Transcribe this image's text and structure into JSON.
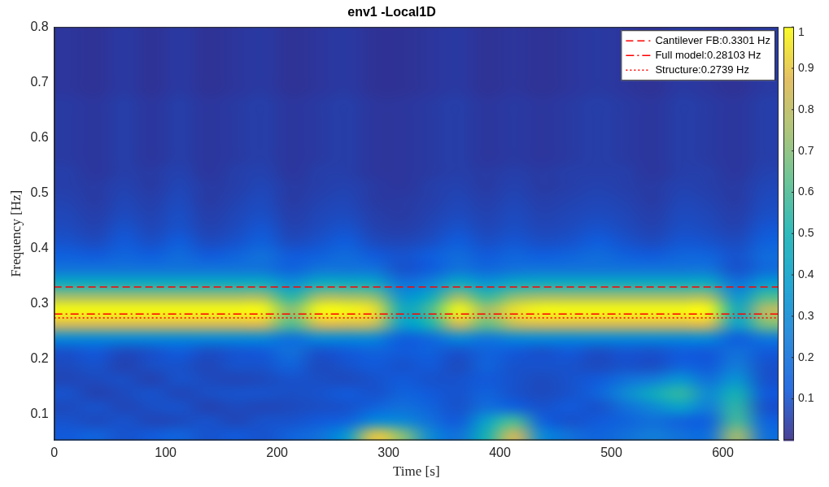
{
  "chart_data": {
    "type": "heatmap",
    "title": "env1 -Local1D",
    "xlabel": "Time [s]",
    "ylabel": "Frequency [Hz]",
    "xlim": [
      0,
      650
    ],
    "xticks": [
      0,
      100,
      200,
      300,
      400,
      500,
      600
    ],
    "ylim": [
      0.053,
      0.8
    ],
    "yticks": [
      0.1,
      0.2,
      0.3,
      0.4,
      0.5,
      0.6,
      0.7,
      0.8
    ],
    "grid": false,
    "legend": "upper right",
    "x_edges": [
      0,
      25,
      50,
      75,
      100,
      125,
      150,
      175,
      200,
      225,
      250,
      275,
      300,
      325,
      350,
      375,
      400,
      425,
      450,
      475,
      500,
      525,
      550,
      575,
      600,
      625,
      650
    ],
    "y_edges": [
      0.05,
      0.075,
      0.1,
      0.125,
      0.15,
      0.175,
      0.2,
      0.225,
      0.25,
      0.275,
      0.3,
      0.325,
      0.35,
      0.375,
      0.4,
      0.425,
      0.45,
      0.475,
      0.5,
      0.525,
      0.55,
      0.575,
      0.6,
      0.625,
      0.65,
      0.675,
      0.7,
      0.725,
      0.75,
      0.775,
      0.8
    ],
    "cells": [
      [
        0.12,
        0.15,
        0.1,
        0.12,
        0.15,
        0.1,
        0.12,
        0.1,
        0.15,
        0.2,
        0.35,
        0.9,
        0.7,
        0.3,
        0.2,
        0.5,
        0.85,
        0.3,
        0.2,
        0.15,
        0.2,
        0.25,
        0.2,
        0.2,
        0.75,
        0.2
      ],
      [
        0.1,
        0.08,
        0.1,
        0.07,
        0.08,
        0.1,
        0.07,
        0.1,
        0.1,
        0.12,
        0.15,
        0.3,
        0.3,
        0.2,
        0.12,
        0.4,
        0.6,
        0.15,
        0.1,
        0.12,
        0.15,
        0.2,
        0.15,
        0.15,
        0.6,
        0.15
      ],
      [
        0.08,
        0.1,
        0.07,
        0.09,
        0.1,
        0.06,
        0.08,
        0.07,
        0.08,
        0.09,
        0.1,
        0.15,
        0.2,
        0.15,
        0.1,
        0.2,
        0.15,
        0.1,
        0.12,
        0.1,
        0.2,
        0.3,
        0.4,
        0.25,
        0.55,
        0.1
      ],
      [
        0.1,
        0.06,
        0.08,
        0.1,
        0.07,
        0.09,
        0.1,
        0.1,
        0.09,
        0.1,
        0.12,
        0.1,
        0.15,
        0.12,
        0.1,
        0.15,
        0.1,
        0.08,
        0.1,
        0.15,
        0.3,
        0.45,
        0.55,
        0.3,
        0.5,
        0.12
      ],
      [
        0.07,
        0.08,
        0.09,
        0.06,
        0.1,
        0.08,
        0.07,
        0.08,
        0.1,
        0.09,
        0.08,
        0.1,
        0.12,
        0.1,
        0.1,
        0.12,
        0.1,
        0.08,
        0.1,
        0.12,
        0.2,
        0.25,
        0.35,
        0.2,
        0.35,
        0.1
      ],
      [
        0.08,
        0.1,
        0.06,
        0.09,
        0.1,
        0.07,
        0.1,
        0.1,
        0.15,
        0.08,
        0.1,
        0.12,
        0.1,
        0.12,
        0.08,
        0.15,
        0.1,
        0.1,
        0.1,
        0.08,
        0.1,
        0.09,
        0.15,
        0.12,
        0.25,
        0.1
      ],
      [
        0.1,
        0.12,
        0.08,
        0.1,
        0.13,
        0.09,
        0.11,
        0.12,
        0.2,
        0.1,
        0.12,
        0.15,
        0.12,
        0.14,
        0.1,
        0.15,
        0.12,
        0.1,
        0.12,
        0.09,
        0.11,
        0.1,
        0.13,
        0.12,
        0.2,
        0.12
      ],
      [
        0.3,
        0.3,
        0.3,
        0.3,
        0.3,
        0.3,
        0.3,
        0.3,
        0.21,
        0.3,
        0.3,
        0.29,
        0.14,
        0.18,
        0.3,
        0.23,
        0.29,
        0.3,
        0.3,
        0.3,
        0.3,
        0.3,
        0.3,
        0.3,
        0.14,
        0.24
      ],
      [
        0.85,
        0.85,
        0.85,
        0.85,
        0.85,
        0.85,
        0.85,
        0.85,
        0.6,
        0.85,
        0.85,
        0.81,
        0.38,
        0.51,
        0.85,
        0.64,
        0.81,
        0.85,
        0.85,
        0.85,
        0.85,
        0.85,
        0.85,
        0.85,
        0.38,
        0.68
      ],
      [
        1,
        1,
        1,
        1,
        1,
        1,
        1,
        1,
        0.7,
        1,
        1,
        0.95,
        0.45,
        0.6,
        1,
        0.75,
        0.95,
        1,
        1,
        1,
        1,
        1,
        1,
        1,
        0.45,
        0.8
      ],
      [
        0.75,
        0.75,
        0.75,
        0.75,
        0.75,
        0.75,
        0.75,
        0.75,
        0.53,
        0.75,
        0.75,
        0.71,
        0.34,
        0.45,
        0.75,
        0.56,
        0.71,
        0.75,
        0.75,
        0.75,
        0.75,
        0.75,
        0.75,
        0.75,
        0.34,
        0.6
      ],
      [
        0.45,
        0.45,
        0.45,
        0.45,
        0.45,
        0.45,
        0.45,
        0.45,
        0.32,
        0.45,
        0.45,
        0.43,
        0.2,
        0.27,
        0.45,
        0.34,
        0.43,
        0.45,
        0.45,
        0.45,
        0.45,
        0.45,
        0.45,
        0.45,
        0.2,
        0.36
      ],
      [
        0.22,
        0.22,
        0.22,
        0.22,
        0.22,
        0.22,
        0.22,
        0.22,
        0.15,
        0.22,
        0.22,
        0.21,
        0.1,
        0.13,
        0.22,
        0.17,
        0.21,
        0.22,
        0.22,
        0.22,
        0.22,
        0.22,
        0.22,
        0.22,
        0.1,
        0.18
      ],
      [
        0.14,
        0.12,
        0.16,
        0.13,
        0.18,
        0.12,
        0.15,
        0.2,
        0.12,
        0.14,
        0.18,
        0.12,
        0.1,
        0.13,
        0.18,
        0.12,
        0.16,
        0.13,
        0.15,
        0.18,
        0.14,
        0.12,
        0.16,
        0.15,
        0.1,
        0.18
      ],
      [
        0.1,
        0.08,
        0.12,
        0.09,
        0.13,
        0.08,
        0.1,
        0.14,
        0.08,
        0.1,
        0.13,
        0.08,
        0.07,
        0.09,
        0.13,
        0.09,
        0.11,
        0.09,
        0.1,
        0.13,
        0.1,
        0.08,
        0.11,
        0.1,
        0.08,
        0.14
      ],
      [
        0.08,
        0.06,
        0.1,
        0.07,
        0.1,
        0.06,
        0.08,
        0.11,
        0.06,
        0.08,
        0.1,
        0.06,
        0.05,
        0.07,
        0.1,
        0.07,
        0.09,
        0.07,
        0.08,
        0.1,
        0.08,
        0.06,
        0.09,
        0.08,
        0.06,
        0.11
      ],
      [
        0.07,
        0.05,
        0.08,
        0.06,
        0.09,
        0.05,
        0.07,
        0.09,
        0.05,
        0.07,
        0.08,
        0.05,
        0.04,
        0.06,
        0.08,
        0.06,
        0.08,
        0.06,
        0.07,
        0.08,
        0.07,
        0.05,
        0.08,
        0.07,
        0.05,
        0.09
      ],
      [
        0.06,
        0.04,
        0.07,
        0.05,
        0.08,
        0.04,
        0.06,
        0.08,
        0.04,
        0.06,
        0.07,
        0.04,
        0.04,
        0.05,
        0.07,
        0.05,
        0.07,
        0.05,
        0.06,
        0.07,
        0.06,
        0.04,
        0.07,
        0.06,
        0.04,
        0.08
      ],
      [
        0.05,
        0.04,
        0.06,
        0.04,
        0.07,
        0.04,
        0.05,
        0.07,
        0.04,
        0.05,
        0.06,
        0.04,
        0.03,
        0.05,
        0.06,
        0.04,
        0.06,
        0.04,
        0.05,
        0.06,
        0.05,
        0.04,
        0.06,
        0.05,
        0.04,
        0.07
      ],
      [
        0.05,
        0.03,
        0.05,
        0.04,
        0.06,
        0.03,
        0.05,
        0.06,
        0.03,
        0.05,
        0.05,
        0.03,
        0.03,
        0.04,
        0.05,
        0.04,
        0.05,
        0.04,
        0.05,
        0.05,
        0.05,
        0.03,
        0.05,
        0.05,
        0.03,
        0.06
      ],
      [
        0.04,
        0.03,
        0.05,
        0.03,
        0.05,
        0.03,
        0.04,
        0.05,
        0.03,
        0.04,
        0.05,
        0.03,
        0.03,
        0.04,
        0.05,
        0.03,
        0.04,
        0.03,
        0.04,
        0.05,
        0.04,
        0.03,
        0.05,
        0.04,
        0.03,
        0.05
      ],
      [
        0.04,
        0.03,
        0.05,
        0.03,
        0.05,
        0.03,
        0.04,
        0.05,
        0.03,
        0.04,
        0.05,
        0.03,
        0.03,
        0.04,
        0.05,
        0.03,
        0.04,
        0.03,
        0.04,
        0.05,
        0.04,
        0.03,
        0.05,
        0.04,
        0.03,
        0.05
      ],
      [
        0.04,
        0.03,
        0.05,
        0.03,
        0.05,
        0.03,
        0.04,
        0.05,
        0.03,
        0.04,
        0.05,
        0.03,
        0.03,
        0.04,
        0.05,
        0.03,
        0.04,
        0.03,
        0.04,
        0.05,
        0.04,
        0.03,
        0.05,
        0.04,
        0.03,
        0.05
      ],
      [
        0.04,
        0.03,
        0.05,
        0.03,
        0.05,
        0.03,
        0.04,
        0.05,
        0.03,
        0.04,
        0.05,
        0.03,
        0.03,
        0.04,
        0.05,
        0.03,
        0.04,
        0.03,
        0.04,
        0.05,
        0.04,
        0.03,
        0.05,
        0.04,
        0.03,
        0.05
      ],
      [
        0.04,
        0.03,
        0.05,
        0.03,
        0.05,
        0.03,
        0.04,
        0.05,
        0.03,
        0.04,
        0.05,
        0.03,
        0.03,
        0.04,
        0.05,
        0.03,
        0.04,
        0.03,
        0.04,
        0.05,
        0.04,
        0.03,
        0.05,
        0.04,
        0.03,
        0.05
      ],
      [
        0.03,
        0.02,
        0.04,
        0.02,
        0.04,
        0.02,
        0.03,
        0.04,
        0.02,
        0.03,
        0.04,
        0.02,
        0.02,
        0.03,
        0.04,
        0.02,
        0.03,
        0.02,
        0.03,
        0.04,
        0.03,
        0.02,
        0.04,
        0.03,
        0.02,
        0.04
      ],
      [
        0.03,
        0.02,
        0.04,
        0.02,
        0.04,
        0.02,
        0.03,
        0.04,
        0.02,
        0.03,
        0.04,
        0.02,
        0.02,
        0.03,
        0.04,
        0.02,
        0.03,
        0.02,
        0.03,
        0.04,
        0.03,
        0.02,
        0.04,
        0.03,
        0.02,
        0.04
      ],
      [
        0.03,
        0.02,
        0.04,
        0.02,
        0.04,
        0.02,
        0.03,
        0.04,
        0.02,
        0.03,
        0.04,
        0.02,
        0.02,
        0.03,
        0.04,
        0.02,
        0.03,
        0.02,
        0.03,
        0.04,
        0.03,
        0.02,
        0.04,
        0.03,
        0.02,
        0.04
      ],
      [
        0.03,
        0.02,
        0.04,
        0.02,
        0.04,
        0.02,
        0.03,
        0.04,
        0.02,
        0.03,
        0.04,
        0.02,
        0.02,
        0.03,
        0.04,
        0.02,
        0.03,
        0.02,
        0.03,
        0.04,
        0.03,
        0.02,
        0.04,
        0.03,
        0.02,
        0.04
      ],
      [
        0.03,
        0.02,
        0.04,
        0.02,
        0.04,
        0.02,
        0.03,
        0.04,
        0.02,
        0.03,
        0.04,
        0.02,
        0.02,
        0.03,
        0.04,
        0.02,
        0.03,
        0.02,
        0.03,
        0.04,
        0.03,
        0.02,
        0.04,
        0.03,
        0.02,
        0.04
      ]
    ],
    "colorbar": {
      "clim": [
        0,
        1
      ],
      "ticks": [
        0.1,
        0.2,
        0.3,
        0.4,
        0.5,
        0.6,
        0.7,
        0.8,
        0.9,
        1
      ]
    },
    "series": [
      {
        "name": "Cantilever FB:0.3301 Hz",
        "value": 0.3301,
        "color": "#ff0000",
        "line_style": "dashed"
      },
      {
        "name": "Full model:0.28103 Hz",
        "value": 0.28103,
        "color": "#ff0000",
        "line_style": "dashdot"
      },
      {
        "name": "Structure:0.2739 Hz",
        "value": 0.2739,
        "color": "#ff0000",
        "line_style": "dotted"
      }
    ]
  }
}
